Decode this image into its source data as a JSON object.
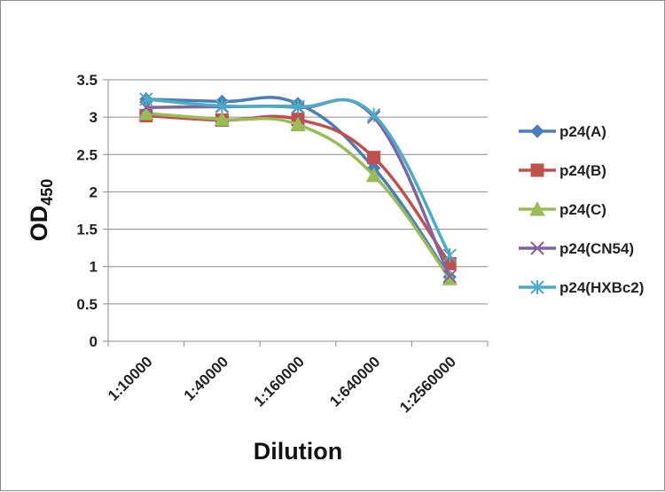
{
  "chart_data": {
    "type": "line",
    "categories": [
      "1:10000",
      "1:40000",
      "1:160000",
      "1:640000",
      "1:2560000"
    ],
    "xlabel": "Dilution",
    "ylabel": "OD",
    "ylabel_subscript": "450",
    "ylim": [
      0,
      3.5
    ],
    "yticks": [
      "0",
      "0.5",
      "1",
      "1.5",
      "2",
      "2.5",
      "3",
      "3.5"
    ],
    "grid": true,
    "legend": "right",
    "series": [
      {
        "name": "p24(A)",
        "color": "#4a7ebb",
        "marker": "diamond",
        "values": [
          3.24,
          3.21,
          3.18,
          2.32,
          0.86
        ]
      },
      {
        "name": "p24(B)",
        "color": "#c0504d",
        "marker": "square",
        "values": [
          3.02,
          2.96,
          2.97,
          2.46,
          1.04
        ]
      },
      {
        "name": "p24(C)",
        "color": "#9bbb59",
        "marker": "triangle",
        "values": [
          3.05,
          2.97,
          2.9,
          2.22,
          0.84
        ]
      },
      {
        "name": "p24(CN54)",
        "color": "#8064a2",
        "marker": "x",
        "values": [
          3.13,
          3.14,
          3.13,
          3.0,
          0.87
        ]
      },
      {
        "name": "p24(HXBc2)",
        "color": "#4bacc6",
        "marker": "star",
        "values": [
          3.24,
          3.15,
          3.14,
          3.03,
          1.15
        ]
      }
    ]
  }
}
